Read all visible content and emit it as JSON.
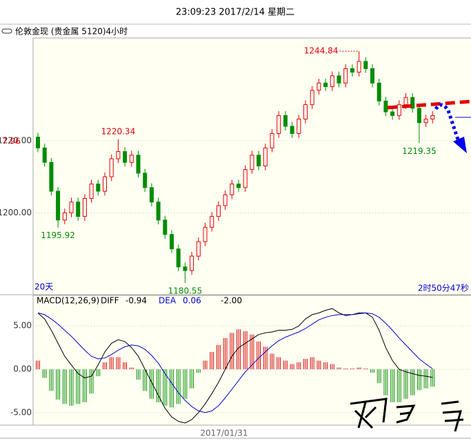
{
  "header": {
    "time": "23:09:23 2017/2/14 星期二",
    "instrument": "伦敦金现 (贵金属 5120)4小时"
  },
  "chart_data": [
    {
      "type": "candlestick",
      "open": [
        1221,
        1218,
        1214,
        1206,
        1198,
        1200,
        1203,
        1199,
        1204,
        1208,
        1206,
        1210,
        1215,
        1217,
        1214,
        1216,
        1211,
        1207,
        1203,
        1198,
        1194,
        1190,
        1185,
        1184,
        1188,
        1192,
        1196,
        1199,
        1202,
        1205,
        1208,
        1207,
        1212,
        1216,
        1213,
        1218,
        1222,
        1227,
        1224,
        1222,
        1226,
        1230,
        1234,
        1236,
        1235,
        1238,
        1236,
        1240,
        1239,
        1242,
        1240,
        1236,
        1231,
        1228,
        1227,
        1230,
        1232,
        1229,
        1225,
        1226
      ],
      "high": [
        1222.2,
        1219.2,
        1215.2,
        1207.2,
        1201.2,
        1204.2,
        1204.2,
        1205.2,
        1209.2,
        1209.2,
        1211.2,
        1216.2,
        1220.34,
        1218.2,
        1217.2,
        1217.2,
        1212.2,
        1208.2,
        1204.2,
        1199.2,
        1195.2,
        1191.2,
        1186.2,
        1189.2,
        1193.2,
        1197.2,
        1200.2,
        1203.2,
        1206.2,
        1209.2,
        1209.2,
        1213.2,
        1217.2,
        1217.2,
        1219.2,
        1223.2,
        1228.2,
        1228.2,
        1225.2,
        1227.2,
        1231.2,
        1235.2,
        1237.2,
        1237.2,
        1239.2,
        1239.2,
        1241.2,
        1241.2,
        1244.84,
        1243.2,
        1241.2,
        1237.2,
        1232.2,
        1229.2,
        1231.2,
        1233.2,
        1233.2,
        1230.2,
        1227.2,
        1228.2
      ],
      "low": [
        1216.8,
        1212.8,
        1204.8,
        1195.92,
        1196.8,
        1198.8,
        1197.8,
        1197.8,
        1202.8,
        1204.8,
        1204.8,
        1208.8,
        1213.8,
        1212.8,
        1212.8,
        1209.8,
        1205.8,
        1201.8,
        1196.8,
        1192.8,
        1188.8,
        1183.8,
        1180.55,
        1182.8,
        1186.8,
        1190.8,
        1194.8,
        1197.8,
        1200.8,
        1203.8,
        1205.8,
        1205.8,
        1210.8,
        1211.8,
        1211.8,
        1216.8,
        1220.8,
        1222.8,
        1220.8,
        1220.8,
        1224.8,
        1228.8,
        1232.8,
        1233.8,
        1233.8,
        1234.8,
        1234.8,
        1237.8,
        1237.8,
        1238.8,
        1234.8,
        1229.8,
        1226.8,
        1225.8,
        1225.8,
        1228.8,
        1227.8,
        1219.35,
        1223.8,
        1224.8
      ],
      "close": [
        1218,
        1214,
        1206,
        1198,
        1200,
        1203,
        1199,
        1204,
        1208,
        1206,
        1210,
        1215,
        1217,
        1214,
        1216,
        1211,
        1207,
        1203,
        1198,
        1194,
        1190,
        1185,
        1184,
        1188,
        1192,
        1196,
        1199,
        1202,
        1205,
        1208,
        1207,
        1212,
        1216,
        1213,
        1218,
        1222,
        1227,
        1224,
        1222,
        1226,
        1230,
        1234,
        1236,
        1235,
        1238,
        1236,
        1240,
        1239,
        1242,
        1240,
        1236,
        1231,
        1228,
        1227,
        1230,
        1232,
        1229,
        1225,
        1226,
        1227
      ],
      "up_color": "#e00000",
      "down_color": "#008c00",
      "ylim": [
        1177.3,
        1248.5
      ],
      "yticks": [
        {
          "value": 1220,
          "label": "1220.00"
        },
        {
          "value": 1200,
          "label": "1200.00"
        }
      ],
      "grid": true,
      "annotations": [
        "7.96"
      ],
      "period": "20天",
      "countdown": "2时50分47秒",
      "date_label": "2017/01/31"
    },
    {
      "type": "macd",
      "name": "MACD(12,26,9)",
      "diff_name": "DIFF",
      "diff_value": "-0.94",
      "dea_name": "DEA",
      "dea_value": "0.06",
      "macd_value": "-2.00",
      "series": [
        {
          "name": "DIFF",
          "color": "#000000",
          "values": [
            6.5,
            5.8,
            4.5,
            3,
            1.5,
            0.5,
            -0.5,
            -1,
            -0.8,
            0.5,
            2,
            3,
            3.4,
            3.2,
            2.5,
            1.5,
            0,
            -1.5,
            -3,
            -4.5,
            -5.5,
            -6,
            -6.2,
            -5.8,
            -5,
            -4,
            -2.8,
            -1.5,
            0,
            1.5,
            2.5,
            3,
            3.5,
            4,
            4.2,
            4.3,
            4.5,
            4.5,
            4.6,
            5,
            5.8,
            6.3,
            6.5,
            6.8,
            7,
            6.5,
            6.2,
            6.3,
            6.5,
            6.5,
            6,
            4.5,
            2.5,
            1,
            0,
            -0.3,
            -0.5,
            -0.7,
            -0.8,
            -0.94
          ]
        },
        {
          "name": "DEA",
          "color": "#0000cc",
          "values": [
            6.5,
            6.3,
            5.8,
            5.2,
            4.5,
            3.8,
            3,
            2.2,
            1.5,
            1.2,
            1.3,
            1.7,
            2.2,
            2.6,
            2.8,
            2.7,
            2.3,
            1.6,
            0.7,
            -0.5,
            -1.6,
            -2.7,
            -3.6,
            -4.3,
            -4.8,
            -5,
            -4.8,
            -4.2,
            -3.3,
            -2.3,
            -1.3,
            -0.3,
            0.5,
            1.3,
            2,
            2.7,
            3.3,
            3.7,
            4,
            4.3,
            4.7,
            5.2,
            5.7,
            6,
            6.2,
            6.3,
            6.3,
            6.3,
            6.4,
            6.5,
            6.4,
            6,
            5.3,
            4.5,
            3.6,
            2.8,
            2,
            1.2,
            0.6,
            0.06
          ]
        }
      ],
      "histogram": [
        1.0,
        -1.0,
        -2.5,
        -3.5,
        -4.0,
        -4.2,
        -4.0,
        -3.8,
        -2.8,
        -0.8,
        0.8,
        1.4,
        1.4,
        0.8,
        0.2,
        -1.2,
        -2.5,
        -3.4,
        -3.8,
        -4.2,
        -4.4,
        -4.0,
        -3.4,
        -2.2,
        -0.4,
        1.0,
        2.0,
        2.8,
        3.6,
        4.2,
        4.6,
        4.4,
        4.0,
        3.2,
        2.6,
        1.8,
        1.4,
        1.0,
        0.6,
        0.8,
        1.2,
        1.4,
        1.0,
        0.8,
        0.6,
        0.2,
        0.1,
        0.1,
        0.2,
        0.1,
        -0.4,
        -1.6,
        -3.0,
        -3.8,
        -3.8,
        -3.4,
        -3.0,
        -2.4,
        -2.2,
        -2.0
      ],
      "ylim": [
        -6.44,
        8.52
      ],
      "yticks": [
        {
          "value": 5,
          "label": "5.00"
        },
        {
          "value": 0,
          "label": "0.00"
        },
        {
          "value": -5,
          "label": "-5.00"
        }
      ]
    }
  ]
}
